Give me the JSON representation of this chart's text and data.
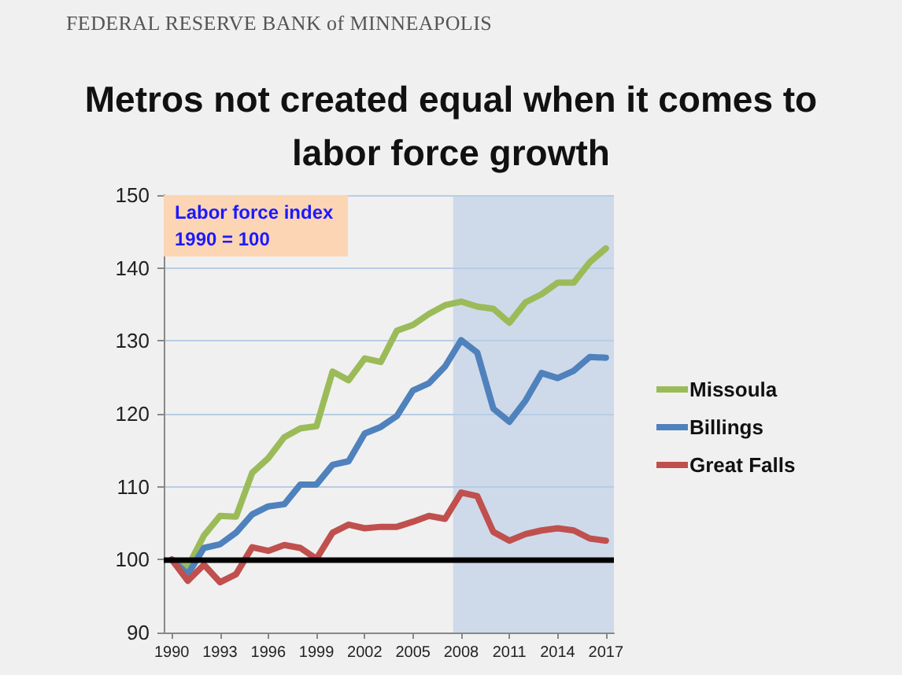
{
  "chart_data": {
    "type": "line",
    "title": "Metros not created equal when it comes to labor force growth",
    "annotations": [
      "FEDERAL RESERVE BANK of MINNEAPOLIS",
      "Labor force index\n1990 = 100"
    ],
    "x": [
      1990,
      1991,
      1992,
      1993,
      1994,
      1995,
      1996,
      1997,
      1998,
      1999,
      2000,
      2001,
      2002,
      2003,
      2004,
      2005,
      2006,
      2007,
      2008,
      2009,
      2010,
      2011,
      2012,
      2013,
      2014,
      2015,
      2016,
      2017
    ],
    "series": [
      {
        "name": "Missoula",
        "color": "#9bbb59",
        "values": [
          100,
          99.0,
          103.3,
          106.0,
          105.9,
          111.9,
          113.9,
          116.8,
          118.0,
          118.3,
          125.8,
          124.6,
          127.6,
          127.1,
          131.4,
          132.2,
          133.7,
          134.9,
          135.4,
          134.7,
          134.4,
          132.5,
          135.3,
          136.4,
          138.0,
          138.0,
          140.8,
          142.7
        ]
      },
      {
        "name": "Billings",
        "color": "#4f81bd",
        "values": [
          100,
          98.0,
          101.6,
          102.1,
          103.7,
          106.2,
          107.3,
          107.6,
          110.3,
          110.3,
          113.0,
          113.5,
          117.3,
          118.2,
          119.7,
          123.2,
          124.2,
          126.5,
          130.1,
          128.4,
          120.7,
          118.9,
          121.8,
          125.6,
          124.9,
          125.9,
          127.8,
          127.7
        ]
      },
      {
        "name": "Great Falls",
        "color": "#c0504d",
        "values": [
          100,
          97.1,
          99.3,
          96.9,
          98.0,
          101.7,
          101.2,
          102.0,
          101.6,
          100.1,
          103.7,
          104.8,
          104.3,
          104.5,
          104.5,
          105.2,
          106.0,
          105.6,
          109.2,
          108.7,
          103.8,
          102.6,
          103.5,
          104.0,
          104.3,
          104.0,
          102.9,
          102.6
        ]
      }
    ],
    "xlim": [
      1989.5,
      2017.5
    ],
    "xticks": [
      1990,
      1993,
      1996,
      1999,
      2002,
      2005,
      2008,
      2011,
      2014,
      2017
    ],
    "ylim": [
      90,
      150
    ],
    "yticks": [
      90,
      100,
      110,
      120,
      130,
      140,
      150
    ],
    "ref_lines": [
      {
        "axis": "y",
        "value": 100,
        "color": "#000000"
      }
    ],
    "bands": [
      {
        "axis": "x",
        "from": 2007.5,
        "to": 2017.5,
        "color": "#b8cce4"
      }
    ],
    "grid": "y",
    "legend": "right",
    "marker": "none",
    "line_style": "solid"
  }
}
